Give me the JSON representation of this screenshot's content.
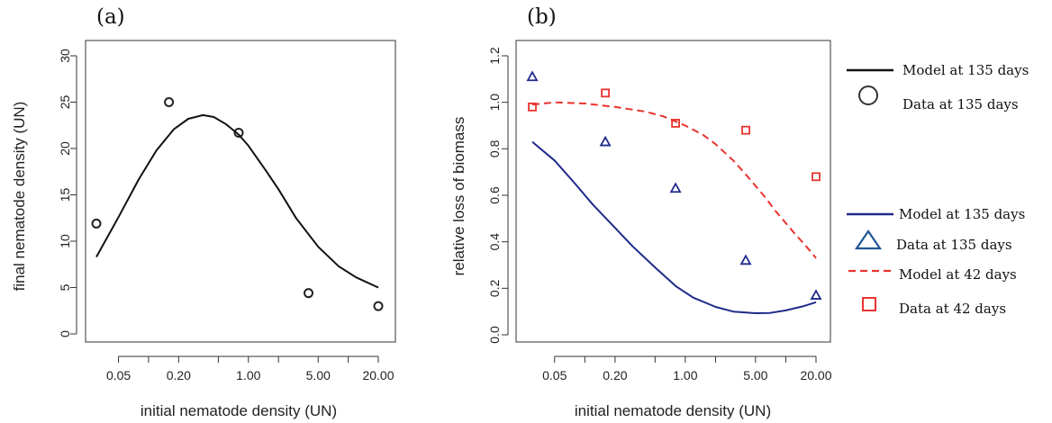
{
  "chart_data": [
    {
      "panel_label": "(a)",
      "type": "scatter",
      "xlabel": "initial nematode density (UN)",
      "ylabel": "final nematode density (UN)",
      "x_scale": "log",
      "xlim": [
        0.025,
        25
      ],
      "ylim": [
        0,
        30
      ],
      "x_ticks": [
        0.05,
        0.2,
        1.0,
        5.0,
        20.0
      ],
      "x_tick_labels": [
        "0.05",
        "0.20",
        "1.00",
        "5.00",
        "20.00"
      ],
      "x_minor_ticks": [
        0.1,
        0.5,
        2,
        10
      ],
      "y_ticks": [
        0,
        5,
        10,
        15,
        20,
        25,
        30
      ],
      "grid": false,
      "series": [
        {
          "kind": "points",
          "marker": "circle",
          "color": "#222222",
          "x": [
            0.03,
            0.16,
            0.8,
            4.0,
            20.0
          ],
          "y": [
            11.9,
            25.0,
            21.7,
            4.4,
            3.0
          ]
        },
        {
          "kind": "line",
          "style": "solid",
          "color": "#111111",
          "x": [
            0.03,
            0.05,
            0.08,
            0.12,
            0.18,
            0.25,
            0.35,
            0.45,
            0.6,
            0.8,
            1.0,
            1.5,
            2.0,
            3.0,
            5.0,
            8.0,
            12.0,
            20.0
          ],
          "y": [
            8.3,
            12.6,
            16.7,
            19.8,
            22.1,
            23.2,
            23.6,
            23.4,
            22.6,
            21.5,
            20.3,
            17.6,
            15.6,
            12.5,
            9.4,
            7.3,
            6.1,
            5.0
          ]
        }
      ]
    },
    {
      "panel_label": "(b)",
      "type": "scatter",
      "xlabel": "initial nematode density (UN)",
      "ylabel": "relative loss of biomass",
      "x_scale": "log",
      "xlim": [
        0.025,
        25
      ],
      "ylim": [
        0,
        1.2
      ],
      "x_ticks": [
        0.05,
        0.2,
        1.0,
        5.0,
        20.0
      ],
      "x_tick_labels": [
        "0.05",
        "0.20",
        "1.00",
        "5.00",
        "20.00"
      ],
      "x_minor_ticks": [
        0.1,
        0.5,
        2,
        10
      ],
      "y_ticks": [
        0.0,
        0.2,
        0.4,
        0.6,
        0.8,
        1.0,
        1.2
      ],
      "y_tick_labels": [
        "0.0",
        "0.2",
        "0.4",
        "0.6",
        "0.8",
        "1.0",
        "1.2"
      ],
      "grid": false,
      "series": [
        {
          "kind": "points",
          "marker": "triangle",
          "color": "#1f2a8a",
          "x": [
            0.03,
            0.16,
            0.8,
            4.0,
            20.0
          ],
          "y": [
            1.11,
            0.83,
            0.63,
            0.32,
            0.17
          ]
        },
        {
          "kind": "points",
          "marker": "square",
          "color": "#e8342f",
          "x": [
            0.03,
            0.16,
            0.8,
            4.0,
            20.0
          ],
          "y": [
            0.98,
            1.04,
            0.91,
            0.88,
            0.68
          ]
        },
        {
          "kind": "line",
          "style": "solid",
          "color": "#1f2a8a",
          "x": [
            0.03,
            0.05,
            0.08,
            0.12,
            0.2,
            0.3,
            0.5,
            0.8,
            1.2,
            2.0,
            3.0,
            5.0,
            7.0,
            10.0,
            15.0,
            20.0
          ],
          "y": [
            0.83,
            0.75,
            0.65,
            0.56,
            0.46,
            0.38,
            0.29,
            0.21,
            0.16,
            0.12,
            0.1,
            0.093,
            0.094,
            0.105,
            0.123,
            0.14
          ]
        },
        {
          "kind": "line",
          "style": "dashed",
          "color": "#e8342f",
          "x": [
            0.03,
            0.05,
            0.1,
            0.2,
            0.4,
            0.6,
            1.0,
            1.5,
            2.0,
            3.0,
            4.0,
            6.0,
            8.0,
            12.0,
            16.0,
            20.0
          ],
          "y": [
            0.99,
            1.0,
            0.995,
            0.98,
            0.96,
            0.94,
            0.9,
            0.86,
            0.82,
            0.75,
            0.69,
            0.6,
            0.53,
            0.44,
            0.38,
            0.33
          ]
        }
      ]
    }
  ],
  "legend_a": {
    "line_label": "Model at 135 days",
    "marker_label": "Data at 135 days",
    "color": "#111111"
  },
  "legend_b": [
    {
      "label": "Model at 135 days",
      "kind": "line",
      "style": "solid",
      "color": "#1f2a8a"
    },
    {
      "label": "Data at 135  days",
      "kind": "marker",
      "marker": "triangle",
      "color": "#1f2a8a"
    },
    {
      "label": "Model at 42 days",
      "kind": "line",
      "style": "dashed",
      "color": "#e8342f"
    },
    {
      "label": "Data at 42 days",
      "kind": "marker",
      "marker": "square",
      "color": "#e8342f"
    }
  ]
}
